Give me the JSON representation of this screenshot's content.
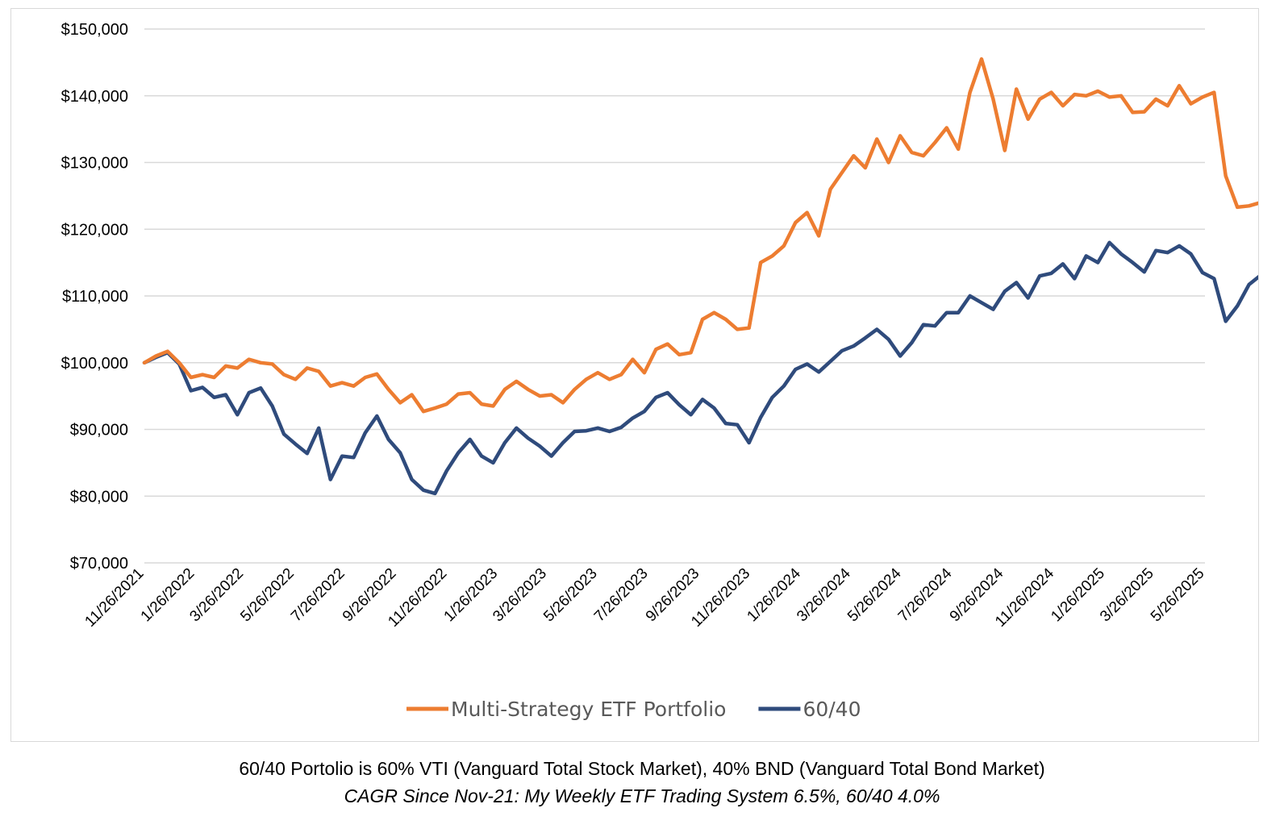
{
  "chart_data": {
    "type": "line",
    "y_tick_labels": [
      "$70,000",
      "$80,000",
      "$90,000",
      "$100,000",
      "$110,000",
      "$120,000",
      "$130,000",
      "$140,000",
      "$150,000"
    ],
    "ylim": [
      70000,
      150000
    ],
    "y_ticks": [
      70000,
      80000,
      90000,
      100000,
      110000,
      120000,
      130000,
      140000,
      150000
    ],
    "x_tick_labels": [
      "11/26/2021",
      "1/26/2022",
      "3/26/2022",
      "5/26/2022",
      "7/26/2022",
      "9/26/2022",
      "11/26/2022",
      "1/26/2023",
      "3/26/2023",
      "5/26/2023",
      "7/26/2023",
      "9/26/2023",
      "11/26/2023",
      "1/26/2024",
      "3/26/2024",
      "5/26/2024",
      "7/26/2024",
      "9/26/2024",
      "11/26/2024",
      "1/26/2025",
      "3/26/2025",
      "5/26/2025"
    ],
    "xlim": [
      "11/26/2021",
      "5/26/2025"
    ],
    "grid": "horizontal",
    "legend_position": "bottom",
    "series": [
      {
        "name": "Multi-Strategy ETF Portfolio",
        "color": "#ED7D31",
        "points": [
          [
            "11/26/2021",
            100000
          ],
          [
            "12/10/2021",
            101000
          ],
          [
            "12/24/2021",
            101700
          ],
          [
            "1/7/2022",
            100000
          ],
          [
            "1/21/2022",
            97800
          ],
          [
            "2/4/2022",
            98200
          ],
          [
            "2/18/2022",
            97800
          ],
          [
            "3/4/2022",
            99500
          ],
          [
            "3/18/2022",
            99200
          ],
          [
            "4/1/2022",
            100500
          ],
          [
            "4/15/2022",
            100000
          ],
          [
            "4/29/2022",
            99800
          ],
          [
            "5/13/2022",
            98200
          ],
          [
            "5/27/2022",
            97500
          ],
          [
            "6/10/2022",
            99200
          ],
          [
            "6/24/2022",
            98700
          ],
          [
            "7/8/2022",
            96500
          ],
          [
            "7/22/2022",
            97000
          ],
          [
            "8/5/2022",
            96500
          ],
          [
            "8/19/2022",
            97800
          ],
          [
            "9/2/2022",
            98300
          ],
          [
            "9/16/2022",
            96000
          ],
          [
            "9/30/2022",
            94000
          ],
          [
            "10/14/2022",
            95200
          ],
          [
            "10/28/2022",
            92700
          ],
          [
            "11/11/2022",
            93200
          ],
          [
            "11/25/2022",
            93800
          ],
          [
            "12/9/2022",
            95300
          ],
          [
            "12/23/2022",
            95500
          ],
          [
            "1/6/2023",
            93800
          ],
          [
            "1/20/2023",
            93500
          ],
          [
            "2/3/2023",
            96000
          ],
          [
            "2/17/2023",
            97200
          ],
          [
            "3/3/2023",
            96000
          ],
          [
            "3/17/2023",
            95000
          ],
          [
            "3/31/2023",
            95200
          ],
          [
            "4/14/2023",
            94000
          ],
          [
            "4/28/2023",
            96000
          ],
          [
            "5/12/2023",
            97500
          ],
          [
            "5/26/2023",
            98500
          ],
          [
            "6/9/2023",
            97500
          ],
          [
            "6/23/2023",
            98200
          ],
          [
            "7/7/2023",
            100500
          ],
          [
            "7/21/2023",
            98500
          ],
          [
            "8/4/2023",
            102000
          ],
          [
            "8/18/2023",
            102800
          ],
          [
            "9/1/2023",
            101200
          ],
          [
            "9/15/2023",
            101500
          ],
          [
            "9/29/2023",
            106500
          ],
          [
            "10/13/2023",
            107500
          ],
          [
            "10/27/2023",
            106500
          ],
          [
            "11/10/2023",
            105000
          ],
          [
            "11/24/2023",
            105200
          ],
          [
            "12/8/2023",
            115000
          ],
          [
            "12/22/2023",
            116000
          ],
          [
            "1/5/2024",
            117500
          ],
          [
            "1/19/2024",
            121000
          ],
          [
            "2/2/2024",
            122500
          ],
          [
            "2/16/2024",
            119000
          ],
          [
            "3/1/2024",
            126000
          ],
          [
            "3/15/2024",
            128500
          ],
          [
            "3/29/2024",
            131000
          ],
          [
            "4/12/2024",
            129200
          ],
          [
            "4/26/2024",
            133500
          ],
          [
            "5/10/2024",
            130000
          ],
          [
            "5/24/2024",
            134000
          ],
          [
            "6/7/2024",
            131500
          ],
          [
            "6/21/2024",
            131000
          ],
          [
            "7/5/2024",
            133000
          ],
          [
            "7/19/2024",
            135200
          ],
          [
            "8/2/2024",
            132000
          ],
          [
            "8/16/2024",
            140500
          ],
          [
            "8/30/2024",
            145500
          ],
          [
            "9/13/2024",
            139500
          ],
          [
            "9/27/2024",
            131800
          ],
          [
            "10/11/2024",
            141000
          ],
          [
            "10/25/2024",
            136500
          ],
          [
            "11/8/2024",
            139500
          ],
          [
            "11/22/2024",
            140500
          ],
          [
            "12/6/2024",
            138500
          ],
          [
            "12/20/2024",
            140200
          ],
          [
            "1/3/2025",
            140000
          ],
          [
            "1/17/2025",
            140700
          ],
          [
            "1/31/2025",
            139800
          ],
          [
            "2/14/2025",
            140000
          ],
          [
            "2/28/2025",
            137500
          ],
          [
            "3/14/2025",
            137600
          ],
          [
            "3/28/2025",
            139500
          ],
          [
            "4/11/2025",
            138500
          ],
          [
            "4/25/2025",
            141500
          ],
          [
            "5/9/2025",
            138800
          ],
          [
            "5/23/2025",
            139800
          ],
          [
            "6/6/2025",
            140500
          ],
          [
            "6/20/2025",
            128000
          ],
          [
            "7/4/2025",
            123300
          ],
          [
            "7/18/2025",
            123500
          ],
          [
            "8/1/2025",
            124000
          ],
          [
            "8/15/2025",
            125000
          ],
          [
            "8/29/2025",
            124600
          ]
        ]
      },
      {
        "name": "60/40",
        "color": "#2F4B7C",
        "points": [
          [
            "11/26/2021",
            100000
          ],
          [
            "12/10/2021",
            100800
          ],
          [
            "12/24/2021",
            101500
          ],
          [
            "1/7/2022",
            99800
          ],
          [
            "1/21/2022",
            95800
          ],
          [
            "2/4/2022",
            96300
          ],
          [
            "2/18/2022",
            94800
          ],
          [
            "3/4/2022",
            95200
          ],
          [
            "3/18/2022",
            92200
          ],
          [
            "4/1/2022",
            95500
          ],
          [
            "4/15/2022",
            96200
          ],
          [
            "4/29/2022",
            93500
          ],
          [
            "5/13/2022",
            89300
          ],
          [
            "5/27/2022",
            87800
          ],
          [
            "6/10/2022",
            86400
          ],
          [
            "6/24/2022",
            90200
          ],
          [
            "7/8/2022",
            82500
          ],
          [
            "7/22/2022",
            86000
          ],
          [
            "8/5/2022",
            85800
          ],
          [
            "8/19/2022",
            89500
          ],
          [
            "9/2/2022",
            92000
          ],
          [
            "9/16/2022",
            88500
          ],
          [
            "9/30/2022",
            86500
          ],
          [
            "10/14/2022",
            82500
          ],
          [
            "10/28/2022",
            80900
          ],
          [
            "11/11/2022",
            80400
          ],
          [
            "11/25/2022",
            83800
          ],
          [
            "12/9/2022",
            86500
          ],
          [
            "12/23/2022",
            88500
          ],
          [
            "1/6/2023",
            86000
          ],
          [
            "1/20/2023",
            85000
          ],
          [
            "2/3/2023",
            88000
          ],
          [
            "2/17/2023",
            90200
          ],
          [
            "3/3/2023",
            88700
          ],
          [
            "3/17/2023",
            87500
          ],
          [
            "3/31/2023",
            86000
          ],
          [
            "4/14/2023",
            88000
          ],
          [
            "4/28/2023",
            89700
          ],
          [
            "5/12/2023",
            89800
          ],
          [
            "5/26/2023",
            90200
          ],
          [
            "6/9/2023",
            89700
          ],
          [
            "6/23/2023",
            90300
          ],
          [
            "7/7/2023",
            91700
          ],
          [
            "7/21/2023",
            92700
          ],
          [
            "8/4/2023",
            94800
          ],
          [
            "8/18/2023",
            95500
          ],
          [
            "9/1/2023",
            93700
          ],
          [
            "9/15/2023",
            92200
          ],
          [
            "9/29/2023",
            94500
          ],
          [
            "10/13/2023",
            93200
          ],
          [
            "10/27/2023",
            90900
          ],
          [
            "11/10/2023",
            90700
          ],
          [
            "11/24/2023",
            88000
          ],
          [
            "12/8/2023",
            91800
          ],
          [
            "12/22/2023",
            94800
          ],
          [
            "1/5/2024",
            96500
          ],
          [
            "1/19/2024",
            99000
          ],
          [
            "2/2/2024",
            99800
          ],
          [
            "2/16/2024",
            98600
          ],
          [
            "3/1/2024",
            100200
          ],
          [
            "3/15/2024",
            101800
          ],
          [
            "3/29/2024",
            102500
          ],
          [
            "4/12/2024",
            103700
          ],
          [
            "4/26/2024",
            105000
          ],
          [
            "5/10/2024",
            103500
          ],
          [
            "5/24/2024",
            101000
          ],
          [
            "6/7/2024",
            103000
          ],
          [
            "6/21/2024",
            105700
          ],
          [
            "7/5/2024",
            105500
          ],
          [
            "7/19/2024",
            107500
          ],
          [
            "8/2/2024",
            107500
          ],
          [
            "8/16/2024",
            110000
          ],
          [
            "8/30/2024",
            109000
          ],
          [
            "9/13/2024",
            108000
          ],
          [
            "9/27/2024",
            110700
          ],
          [
            "10/11/2024",
            112000
          ],
          [
            "10/25/2024",
            109700
          ],
          [
            "11/8/2024",
            113000
          ],
          [
            "11/22/2024",
            113400
          ],
          [
            "12/6/2024",
            114800
          ],
          [
            "12/20/2024",
            112600
          ],
          [
            "1/3/2025",
            116000
          ],
          [
            "1/17/2025",
            115000
          ],
          [
            "1/31/2025",
            118000
          ],
          [
            "2/14/2025",
            116300
          ],
          [
            "2/28/2025",
            115000
          ],
          [
            "3/14/2025",
            113600
          ],
          [
            "3/28/2025",
            116800
          ],
          [
            "4/11/2025",
            116500
          ],
          [
            "4/25/2025",
            117500
          ],
          [
            "5/9/2025",
            116300
          ],
          [
            "5/23/2025",
            113500
          ],
          [
            "6/6/2025",
            112600
          ],
          [
            "6/20/2025",
            106200
          ],
          [
            "7/4/2025",
            108500
          ],
          [
            "7/18/2025",
            111700
          ],
          [
            "8/1/2025",
            113100
          ],
          [
            "8/15/2025",
            116500
          ],
          [
            "8/29/2025",
            114500
          ]
        ]
      }
    ]
  },
  "caption": {
    "line1": "60/40 Portolio is 60% VTI (Vanguard Total Stock Market), 40% BND (Vanguard Total Bond Market)",
    "line2": "CAGR Since Nov-21: My Weekly ETF Trading System 6.5%, 60/40 4.0%"
  }
}
